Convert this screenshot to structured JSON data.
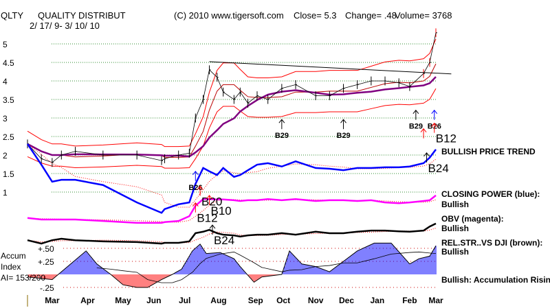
{
  "header": {
    "symbol": "QLTY",
    "name": "QUALITY DISTRIBUT",
    "copyright": "(C) 2010 www.tigersoft.com",
    "close": "Close=  5.3",
    "change": "Change= .48",
    "volume": "Volume= 3768",
    "date_range": "2/ 17/ 9- 3/ 10/ 10"
  },
  "right_labels": {
    "price_trend": "BULLISH PRICE TREND",
    "closing_power": "CLOSING POWER (blue):",
    "closing_power_status": "Bullish",
    "obv": "OBV (magenta):",
    "obv_status": "Bullish",
    "rel_str": "REL.STR..VS DJI (brown):",
    "rel_str_status": "Bullish",
    "accum_status": "Bullish: Accumulation Rising"
  },
  "left_labels": {
    "accum": "Accum",
    "index": "Index",
    "ai": "AI= 153/200"
  },
  "chart_data": {
    "type": "line",
    "title": "QUALITY DISTRIBUT (QLTY)",
    "price_axis": {
      "ticks": [
        "5",
        "4.5",
        "4",
        "3.5",
        "3",
        "2.5",
        "2",
        "1.5",
        "1"
      ],
      "tick_values": [
        5,
        4.5,
        4,
        3.5,
        3,
        2.5,
        2,
        1.5,
        1
      ],
      "ylim": [
        1,
        5
      ]
    },
    "accum_axis": {
      "ticks": [
        "+.50",
        "+.25",
        "-.25"
      ],
      "tick_values": [
        0.5,
        0.25,
        -0.25
      ]
    },
    "x_months": [
      "Mar",
      "Apr",
      "May",
      "Jun",
      "Jul",
      "Aug",
      "Sep",
      "Oct",
      "Nov",
      "Dec",
      "Jan",
      "Feb",
      "Mar"
    ],
    "x_month_days": [
      16,
      39,
      62,
      82,
      102,
      124,
      148,
      166,
      187,
      207,
      227,
      248,
      265
    ],
    "days": [
      0,
      9,
      16,
      22,
      31,
      49,
      71,
      87,
      89,
      98,
      105,
      109,
      114,
      118,
      123,
      127,
      134,
      138,
      143,
      149,
      156,
      165,
      174,
      187,
      196,
      205,
      214,
      223,
      232,
      241,
      248,
      257,
      261,
      265
    ],
    "series": [
      {
        "name": "Close",
        "color": "#000000",
        "values": [
          2.3,
          1.9,
          1.8,
          2.0,
          2.1,
          2.0,
          2.0,
          1.85,
          1.9,
          2.0,
          2.05,
          3.0,
          3.5,
          4.3,
          4.1,
          3.7,
          3.5,
          3.7,
          3.4,
          3.6,
          3.5,
          3.8,
          3.9,
          3.6,
          3.6,
          3.8,
          3.9,
          4.0,
          4.0,
          3.95,
          3.85,
          4.2,
          4.5,
          5.3
        ]
      },
      {
        "name": "Closing Power",
        "color": "#0000ff",
        "values": [
          2.3,
          1.74,
          1.28,
          1.33,
          1.33,
          1.19,
          0.72,
          0.44,
          0.54,
          0.67,
          0.72,
          1.22,
          1.65,
          1.56,
          1.46,
          1.65,
          1.41,
          1.46,
          1.59,
          1.74,
          1.78,
          1.69,
          1.83,
          1.65,
          1.63,
          1.59,
          1.65,
          1.65,
          1.67,
          1.67,
          1.69,
          1.78,
          1.93,
          2.15
        ]
      },
      {
        "name": "OBV",
        "color": "#ff00ff",
        "values": [
          0.3,
          0.26,
          0.26,
          0.26,
          0.26,
          0.22,
          0.17,
          0.17,
          0.19,
          0.22,
          0.35,
          0.63,
          0.81,
          0.81,
          0.8,
          0.8,
          0.78,
          0.76,
          0.78,
          0.78,
          0.81,
          0.78,
          0.81,
          0.76,
          0.78,
          0.78,
          0.76,
          0.78,
          0.72,
          0.7,
          0.72,
          0.76,
          0.78,
          0.91
        ]
      },
      {
        "name": "Rel. Strength vs DJI",
        "color": "#000000",
        "values": [
          -0.3,
          -0.39,
          -0.3,
          -0.26,
          -0.3,
          -0.33,
          -0.35,
          -0.39,
          -0.37,
          -0.37,
          -0.33,
          -0.11,
          -0.07,
          -0.02,
          -0.11,
          -0.15,
          -0.17,
          -0.2,
          -0.17,
          -0.15,
          -0.15,
          -0.11,
          -0.15,
          -0.07,
          -0.11,
          -0.11,
          -0.07,
          -0.04,
          -0.04,
          -0.06,
          -0.07,
          -0.04,
          0.07,
          0.15
        ]
      }
    ],
    "trendline": {
      "from": [
        118,
        4.52
      ],
      "to": [
        275,
        4.19
      ]
    },
    "accum": {
      "days": [
        0,
        16,
        38,
        45,
        54,
        62,
        71,
        78,
        87,
        94,
        100,
        107,
        112,
        116,
        125,
        134,
        138,
        147,
        152,
        165,
        170,
        178,
        187,
        196,
        205,
        214,
        225,
        236,
        248,
        254,
        261,
        265
      ],
      "values": [
        -0.05,
        -0.1,
        0.45,
        0.2,
        0,
        -0.2,
        -0.25,
        -0.25,
        -0.1,
        0,
        0.1,
        0.45,
        0.58,
        0.4,
        0.42,
        0.3,
        0.15,
        -0.15,
        -0.05,
        0,
        0.45,
        0.2,
        0.15,
        0.05,
        0.25,
        0.45,
        0.6,
        0.6,
        0.2,
        0.3,
        0.35,
        0.55
      ]
    },
    "signals": [
      {
        "label": "B29",
        "day": 165,
        "price": 2.7,
        "color": "#000000",
        "size": "small"
      },
      {
        "label": "B29",
        "day": 205,
        "price": 2.7,
        "color": "#000000",
        "size": "small"
      },
      {
        "label": "B29",
        "day": 252,
        "price": 2.95,
        "color": "#000000",
        "size": "small"
      },
      {
        "label": "B26",
        "day": 264,
        "price": 2.95,
        "color": "#0000ff",
        "size": "small"
      },
      {
        "label": "B12",
        "day": 264,
        "price": 2.6,
        "color": "#ff0000",
        "size": "big"
      },
      {
        "label": "",
        "day": 257,
        "price": 2.45,
        "color": "#ff0000",
        "size": "small"
      },
      {
        "label": "B24",
        "day": 259,
        "price": 1.8,
        "color": "#000000",
        "size": "big"
      },
      {
        "label": "B26",
        "day": 109,
        "price": 1.3,
        "color": "#0000ff",
        "size": "small"
      },
      {
        "label": "B20",
        "day": 112,
        "price": 0.9,
        "color": "#ff0000",
        "size": "big"
      },
      {
        "label": "B10",
        "day": 118,
        "price": 0.65,
        "color": "#ff0000",
        "size": "big"
      },
      {
        "label": "B12",
        "day": 109,
        "price": 0.45,
        "color": "#ff0000",
        "size": "big"
      },
      {
        "label": "B24",
        "day": 120,
        "price": -0.15,
        "color": "#000000",
        "size": "big"
      }
    ]
  }
}
